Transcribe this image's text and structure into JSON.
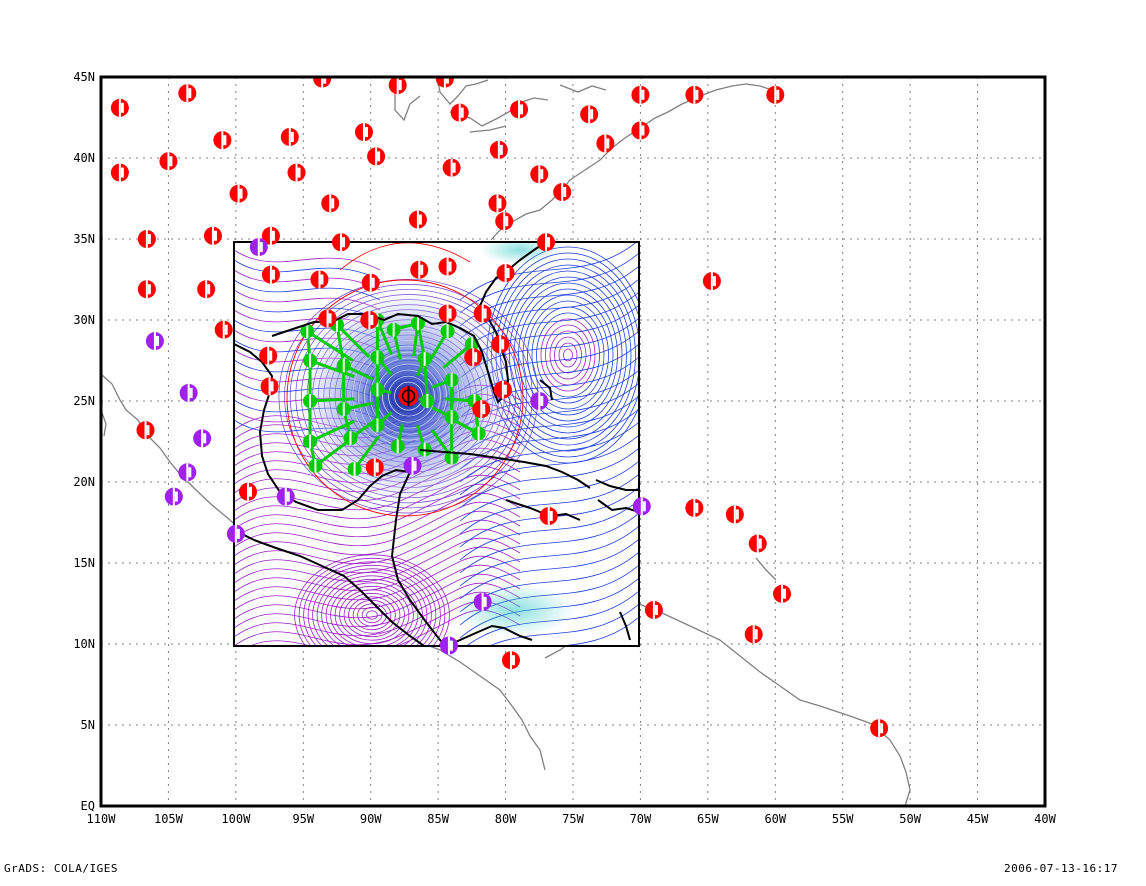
{
  "axes": {
    "y_ticks": [
      "45N",
      "40N",
      "35N",
      "30N",
      "25N",
      "20N",
      "15N",
      "10N",
      "5N",
      "EQ"
    ],
    "x_ticks": [
      "110W",
      "105W",
      "100W",
      "95W",
      "90W",
      "85W",
      "80W",
      "75W",
      "70W",
      "65W",
      "60W",
      "55W",
      "50W",
      "45W",
      "40W"
    ]
  },
  "footer": {
    "left": "GrADS: COLA/IGES",
    "right": "2006-07-13-16:17"
  },
  "extent": {
    "lon": [
      -110,
      -40
    ],
    "lat": [
      0,
      45
    ]
  },
  "nest_box": {
    "lon": [
      -100,
      -70
    ],
    "lat": [
      10,
      35
    ]
  },
  "storm_center": {
    "lon": -87.2,
    "lat": 25.3
  },
  "colors": {
    "station_red": "#ff0000",
    "station_purple": "#a020f0",
    "nest_station_green": "#00cc00",
    "stream_blue": "#1f3fe0",
    "stream_purple": "#9b20c8",
    "coast_outside": "#808080",
    "coast_inside": "#000000",
    "grid": "#808080"
  },
  "stations": [
    {
      "lon": -108.6,
      "lat": 43.1,
      "c": "red"
    },
    {
      "lon": -103.6,
      "lat": 44.0,
      "c": "red"
    },
    {
      "lon": -93.6,
      "lat": 44.9,
      "c": "red"
    },
    {
      "lon": -88.0,
      "lat": 44.5,
      "c": "red"
    },
    {
      "lon": -84.5,
      "lat": 44.9,
      "c": "red"
    },
    {
      "lon": -83.4,
      "lat": 42.8,
      "c": "red"
    },
    {
      "lon": -79.0,
      "lat": 43.0,
      "c": "red"
    },
    {
      "lon": -73.8,
      "lat": 42.7,
      "c": "red"
    },
    {
      "lon": -70.0,
      "lat": 43.9,
      "c": "red"
    },
    {
      "lon": -66.0,
      "lat": 43.9,
      "c": "red"
    },
    {
      "lon": -60.0,
      "lat": 43.9,
      "c": "red"
    },
    {
      "lon": -70.0,
      "lat": 41.7,
      "c": "red"
    },
    {
      "lon": -72.6,
      "lat": 40.9,
      "c": "red"
    },
    {
      "lon": -108.6,
      "lat": 39.1,
      "c": "red"
    },
    {
      "lon": -105.0,
      "lat": 39.8,
      "c": "red"
    },
    {
      "lon": -101.0,
      "lat": 41.1,
      "c": "red"
    },
    {
      "lon": -96.0,
      "lat": 41.3,
      "c": "red"
    },
    {
      "lon": -90.5,
      "lat": 41.6,
      "c": "red"
    },
    {
      "lon": -89.6,
      "lat": 40.1,
      "c": "red"
    },
    {
      "lon": -84.0,
      "lat": 39.4,
      "c": "red"
    },
    {
      "lon": -80.5,
      "lat": 40.5,
      "c": "red"
    },
    {
      "lon": -77.5,
      "lat": 39.0,
      "c": "red"
    },
    {
      "lon": -75.8,
      "lat": 37.9,
      "c": "red"
    },
    {
      "lon": -99.8,
      "lat": 37.8,
      "c": "red"
    },
    {
      "lon": -95.5,
      "lat": 39.1,
      "c": "red"
    },
    {
      "lon": -93.0,
      "lat": 37.2,
      "c": "red"
    },
    {
      "lon": -86.5,
      "lat": 36.2,
      "c": "red"
    },
    {
      "lon": -80.6,
      "lat": 37.2,
      "c": "red"
    },
    {
      "lon": -80.1,
      "lat": 36.1,
      "c": "red"
    },
    {
      "lon": -106.6,
      "lat": 35.0,
      "c": "red"
    },
    {
      "lon": -101.7,
      "lat": 35.2,
      "c": "red"
    },
    {
      "lon": -97.4,
      "lat": 35.2,
      "c": "red"
    },
    {
      "lon": -92.2,
      "lat": 34.8,
      "c": "red"
    },
    {
      "lon": -77.0,
      "lat": 34.8,
      "c": "red"
    },
    {
      "lon": -106.6,
      "lat": 31.9,
      "c": "red"
    },
    {
      "lon": -102.2,
      "lat": 31.9,
      "c": "red"
    },
    {
      "lon": -97.4,
      "lat": 32.8,
      "c": "red"
    },
    {
      "lon": -93.8,
      "lat": 32.5,
      "c": "red"
    },
    {
      "lon": -90.0,
      "lat": 32.3,
      "c": "red"
    },
    {
      "lon": -86.4,
      "lat": 33.1,
      "c": "red"
    },
    {
      "lon": -84.3,
      "lat": 33.3,
      "c": "red"
    },
    {
      "lon": -80.0,
      "lat": 32.9,
      "c": "red"
    },
    {
      "lon": -64.7,
      "lat": 32.4,
      "c": "red"
    },
    {
      "lon": -100.9,
      "lat": 29.4,
      "c": "red"
    },
    {
      "lon": -97.6,
      "lat": 27.8,
      "c": "red"
    },
    {
      "lon": -93.2,
      "lat": 30.1,
      "c": "red"
    },
    {
      "lon": -90.1,
      "lat": 30.0,
      "c": "red"
    },
    {
      "lon": -84.3,
      "lat": 30.4,
      "c": "red"
    },
    {
      "lon": -81.7,
      "lat": 30.4,
      "c": "red"
    },
    {
      "lon": -80.4,
      "lat": 28.5,
      "c": "red"
    },
    {
      "lon": -82.4,
      "lat": 27.7,
      "c": "red"
    },
    {
      "lon": -80.2,
      "lat": 25.7,
      "c": "red"
    },
    {
      "lon": -81.8,
      "lat": 24.5,
      "c": "red"
    },
    {
      "lon": -97.5,
      "lat": 25.9,
      "c": "red"
    },
    {
      "lon": -106.7,
      "lat": 23.2,
      "c": "red"
    },
    {
      "lon": -99.1,
      "lat": 19.4,
      "c": "red"
    },
    {
      "lon": -89.7,
      "lat": 20.9,
      "c": "red"
    },
    {
      "lon": -76.8,
      "lat": 17.9,
      "c": "red"
    },
    {
      "lon": -66.0,
      "lat": 18.4,
      "c": "red"
    },
    {
      "lon": -63.0,
      "lat": 18.0,
      "c": "red"
    },
    {
      "lon": -61.3,
      "lat": 16.2,
      "c": "red"
    },
    {
      "lon": -59.5,
      "lat": 13.1,
      "c": "red"
    },
    {
      "lon": -61.6,
      "lat": 10.6,
      "c": "red"
    },
    {
      "lon": -69.0,
      "lat": 12.1,
      "c": "red"
    },
    {
      "lon": -79.6,
      "lat": 9.0,
      "c": "red"
    },
    {
      "lon": -52.3,
      "lat": 4.8,
      "c": "red"
    },
    {
      "lon": -98.3,
      "lat": 34.5,
      "c": "purple"
    },
    {
      "lon": -106.0,
      "lat": 28.7,
      "c": "purple"
    },
    {
      "lon": -103.5,
      "lat": 25.5,
      "c": "purple"
    },
    {
      "lon": -102.5,
      "lat": 22.7,
      "c": "purple"
    },
    {
      "lon": -103.6,
      "lat": 20.6,
      "c": "purple"
    },
    {
      "lon": -104.6,
      "lat": 19.1,
      "c": "purple"
    },
    {
      "lon": -96.3,
      "lat": 19.1,
      "c": "purple"
    },
    {
      "lon": -100.0,
      "lat": 16.8,
      "c": "purple"
    },
    {
      "lon": -86.9,
      "lat": 21.0,
      "c": "purple"
    },
    {
      "lon": -81.7,
      "lat": 12.6,
      "c": "purple"
    },
    {
      "lon": -84.2,
      "lat": 9.9,
      "c": "purple"
    },
    {
      "lon": -77.5,
      "lat": 25.0,
      "c": "purple"
    },
    {
      "lon": -69.9,
      "lat": 18.5,
      "c": "purple"
    }
  ],
  "nest_stations": [
    {
      "lon": -94.7,
      "lat": 29.3
    },
    {
      "lon": -94.5,
      "lat": 27.5
    },
    {
      "lon": -94.5,
      "lat": 25.0
    },
    {
      "lon": -94.5,
      "lat": 22.5
    },
    {
      "lon": -94.1,
      "lat": 21.0
    },
    {
      "lon": -92.5,
      "lat": 29.7
    },
    {
      "lon": -92.0,
      "lat": 27.2
    },
    {
      "lon": -92.0,
      "lat": 24.5
    },
    {
      "lon": -91.5,
      "lat": 22.7
    },
    {
      "lon": -89.5,
      "lat": 30.0
    },
    {
      "lon": -89.5,
      "lat": 27.7
    },
    {
      "lon": -89.5,
      "lat": 25.7
    },
    {
      "lon": -89.5,
      "lat": 23.5
    },
    {
      "lon": -88.3,
      "lat": 29.4
    },
    {
      "lon": -86.5,
      "lat": 29.8
    },
    {
      "lon": -86.0,
      "lat": 27.6
    },
    {
      "lon": -85.8,
      "lat": 25.0
    },
    {
      "lon": -86.0,
      "lat": 22.0
    },
    {
      "lon": -84.3,
      "lat": 29.3
    },
    {
      "lon": -84.0,
      "lat": 26.3
    },
    {
      "lon": -84.0,
      "lat": 24.0
    },
    {
      "lon": -84.0,
      "lat": 21.5
    },
    {
      "lon": -82.5,
      "lat": 28.5
    },
    {
      "lon": -82.3,
      "lat": 25.0
    },
    {
      "lon": -82.0,
      "lat": 23.0
    },
    {
      "lon": -88.0,
      "lat": 22.2
    },
    {
      "lon": -91.2,
      "lat": 20.8
    }
  ]
}
